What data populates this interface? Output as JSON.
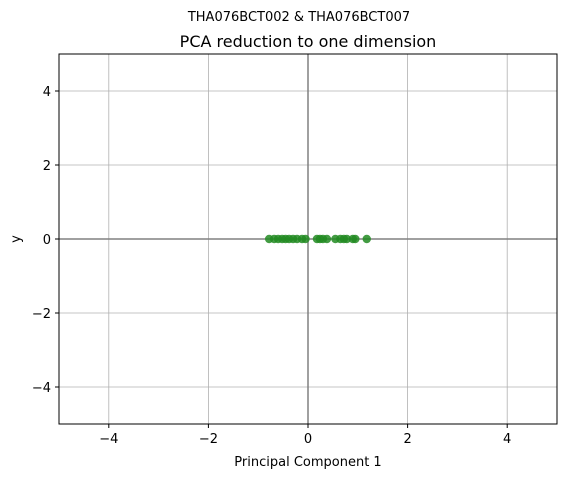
{
  "chart_data": {
    "type": "scatter",
    "suptitle": "THA076BCT002 & THA076BCT007",
    "title": "PCA reduction to one dimension",
    "xlabel": "Principal Component 1",
    "ylabel": "y",
    "xlim": [
      -5,
      5
    ],
    "ylim": [
      -5,
      5
    ],
    "xticks": [
      -4,
      -2,
      0,
      2,
      4
    ],
    "yticks": [
      -4,
      -2,
      0,
      2,
      4
    ],
    "xtick_labels": [
      "−4",
      "−2",
      "0",
      "2",
      "4"
    ],
    "ytick_labels": [
      "−4",
      "−2",
      "0",
      "2",
      "4"
    ],
    "grid": true,
    "point_color": "#228b22",
    "axis_line_color": "#808080",
    "series": [
      {
        "x": [
          -0.78,
          -0.68,
          -0.6,
          -0.52,
          -0.45,
          -0.38,
          -0.3,
          -0.22,
          -0.12,
          -0.05,
          0.18,
          0.24,
          0.3,
          0.38,
          0.55,
          0.65,
          0.72,
          0.78,
          0.9,
          0.95,
          1.18
        ],
        "y": [
          0,
          0,
          0,
          0,
          0,
          0,
          0,
          0,
          0,
          0,
          0,
          0,
          0,
          0,
          0,
          0,
          0,
          0,
          0,
          0,
          0
        ]
      }
    ]
  }
}
